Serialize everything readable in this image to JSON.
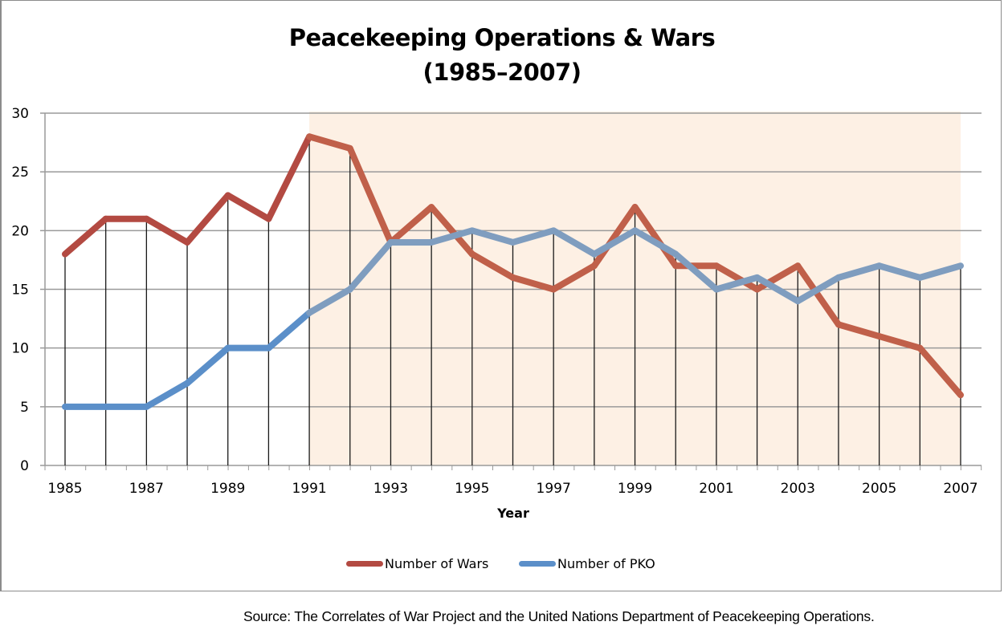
{
  "chart_data": {
    "type": "line",
    "title": "Peacekeeping Operations & Wars",
    "subtitle": "(1985–2007)",
    "xlabel": "Year",
    "ylabel": "",
    "x": [
      1985,
      1986,
      1987,
      1988,
      1989,
      1990,
      1991,
      1992,
      1993,
      1994,
      1995,
      1996,
      1997,
      1998,
      1999,
      2000,
      2001,
      2002,
      2003,
      2004,
      2005,
      2006,
      2007
    ],
    "x_tick_labels": [
      "1985",
      "1987",
      "1989",
      "1991",
      "1993",
      "1995",
      "1997",
      "1999",
      "2001",
      "2003",
      "2005",
      "2007"
    ],
    "ylim": [
      0,
      30
    ],
    "y_ticks": [
      0,
      5,
      10,
      15,
      20,
      25,
      30
    ],
    "y_tick_labels": [
      "0",
      "5",
      "10",
      "15",
      "20",
      "25",
      "30"
    ],
    "grid": "horizontal",
    "drop_lines": true,
    "highlight_region": {
      "x_start": 1991,
      "x_end": 2007,
      "color": "#fdf0e4"
    },
    "series": [
      {
        "name": "Number of Wars",
        "color": "#b34a42",
        "color_shaded": "#c0604a",
        "values": [
          18,
          21,
          21,
          19,
          23,
          21,
          28,
          27,
          19,
          22,
          18,
          16,
          15,
          17,
          22,
          17,
          17,
          15,
          17,
          12,
          11,
          10,
          6
        ]
      },
      {
        "name": "Number of PKO",
        "color": "#5b8fc9",
        "color_shaded": "#7f9dbf",
        "values": [
          5,
          5,
          5,
          7,
          10,
          10,
          13,
          15,
          19,
          19,
          20,
          19,
          20,
          18,
          20,
          18,
          15,
          16,
          14,
          16,
          17,
          16,
          17
        ]
      }
    ],
    "legend_position": "bottom",
    "source": "Source: The Correlates of War Project and the United Nations Department of Peacekeeping Operations."
  }
}
